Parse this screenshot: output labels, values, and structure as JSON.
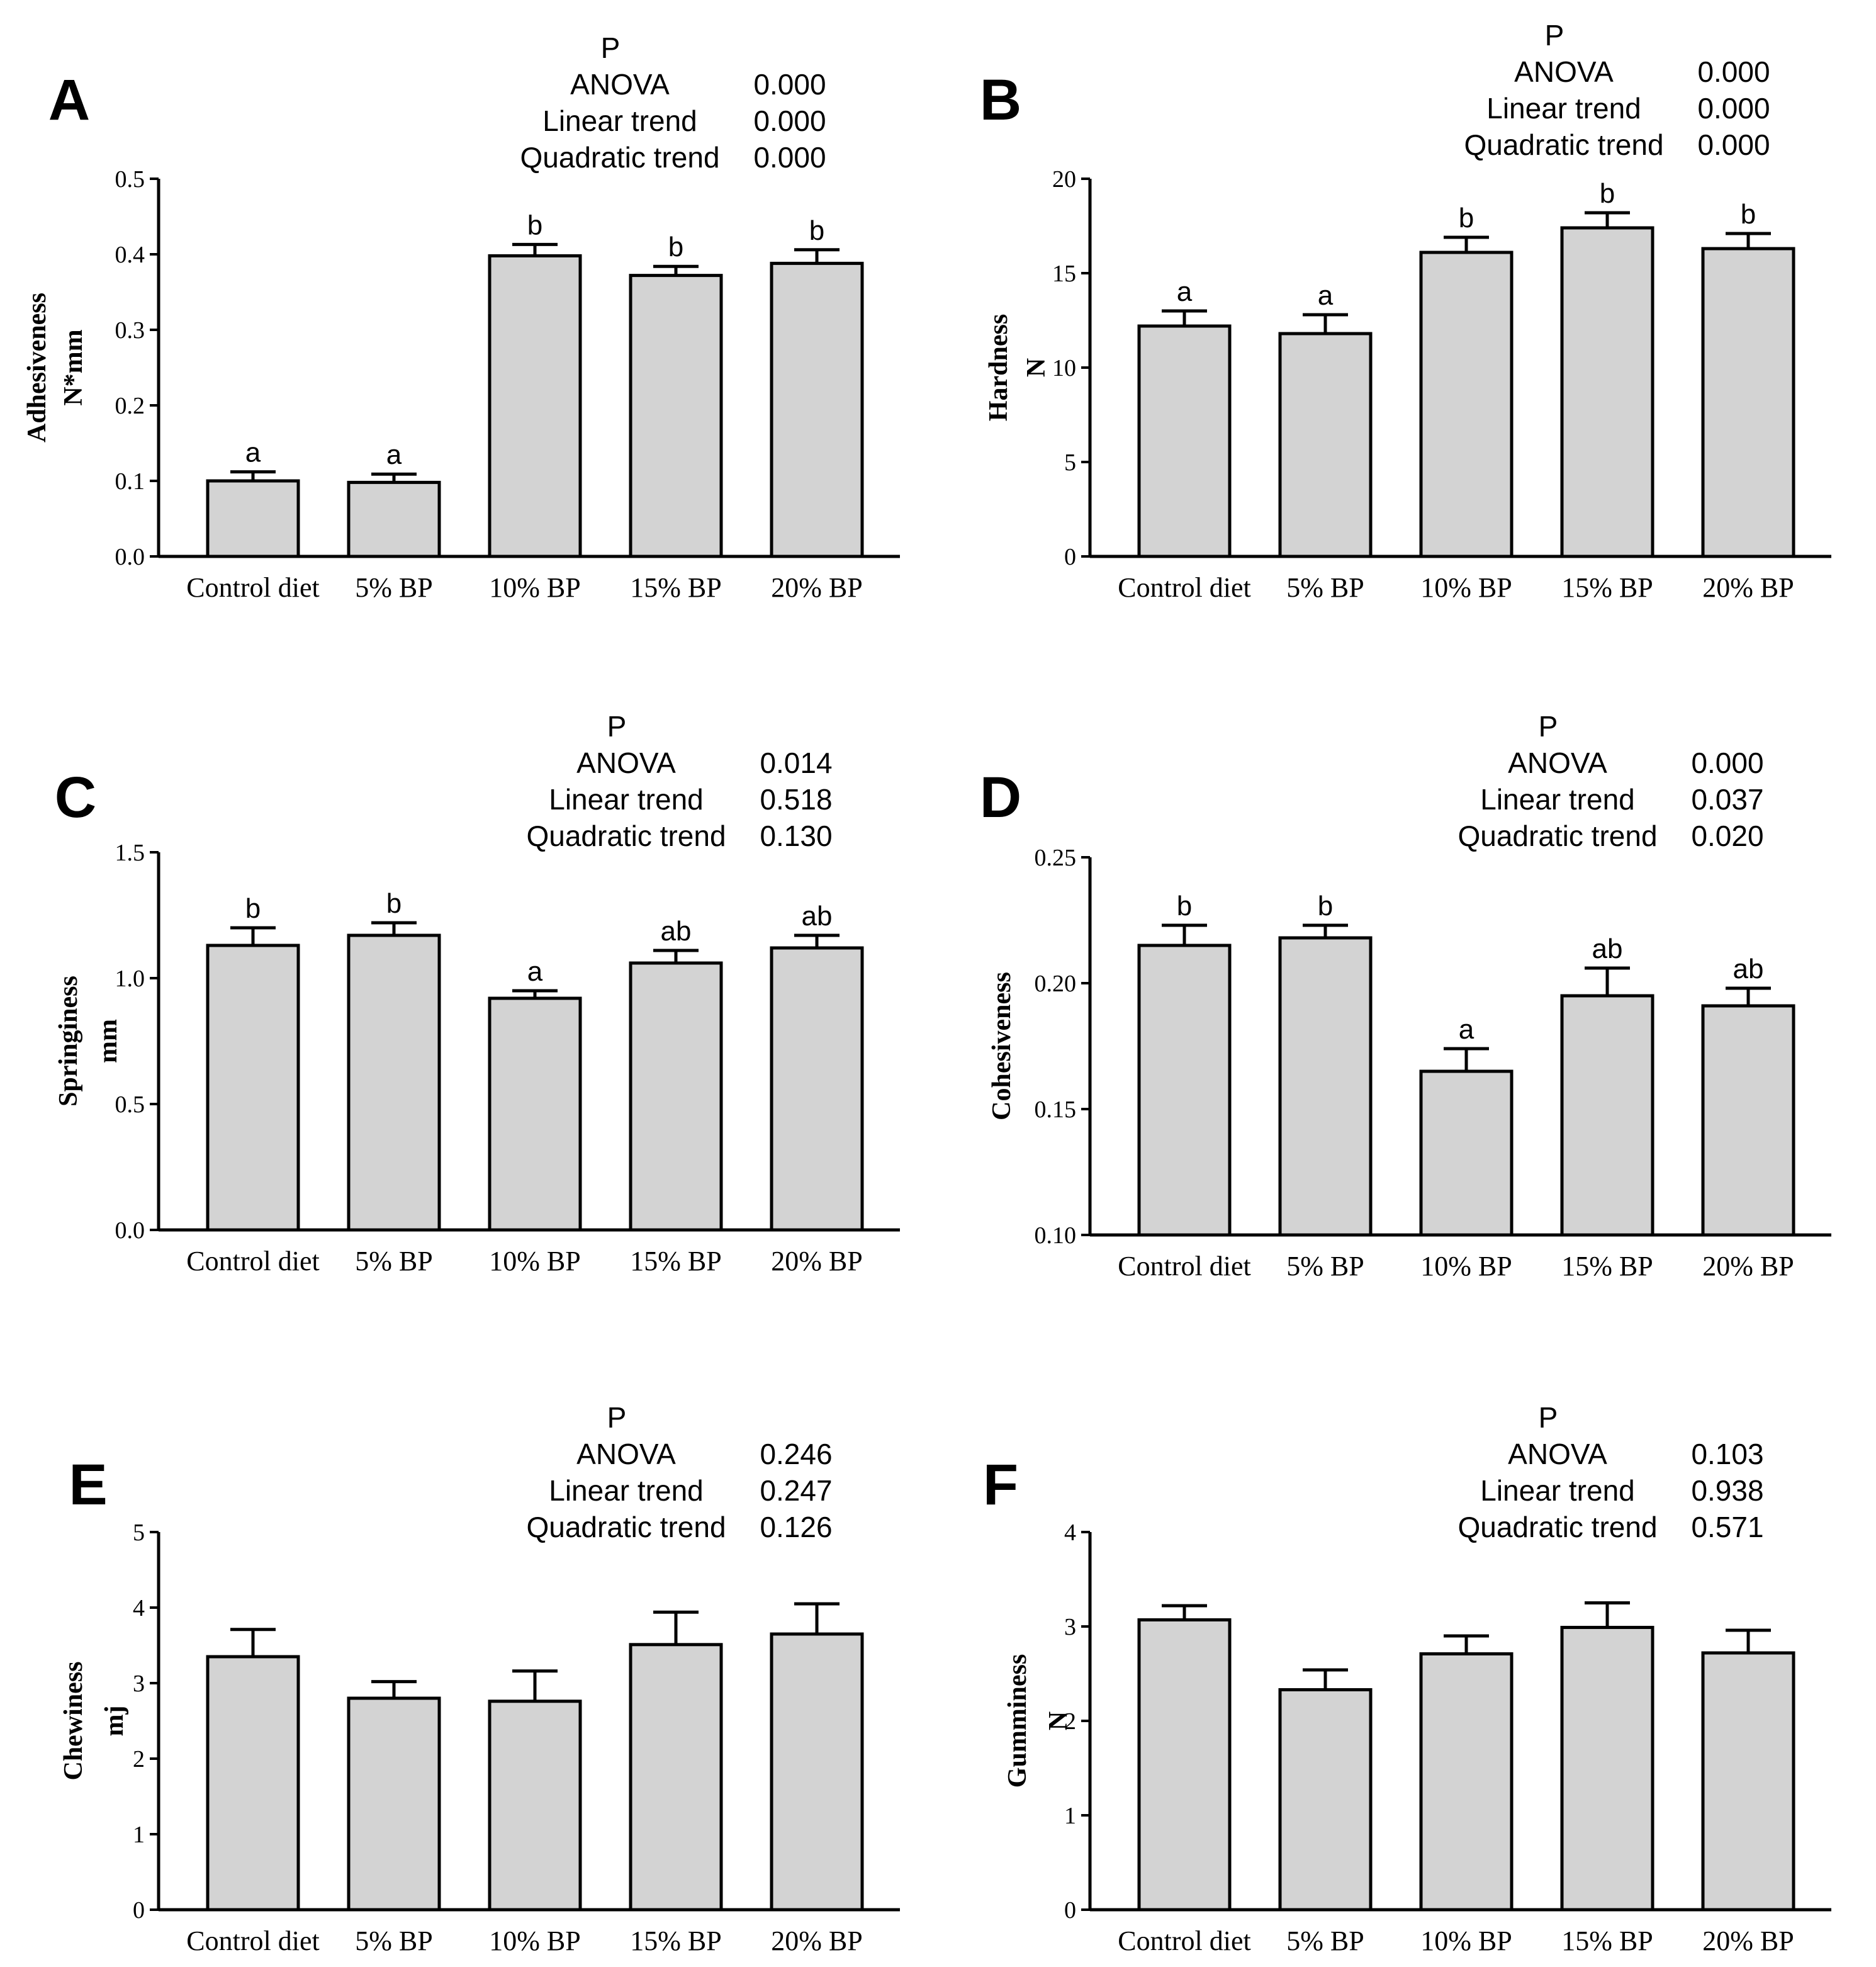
{
  "chart_data": [
    {
      "panel": "A",
      "type": "bar",
      "categories": [
        "Control diet",
        "5% BP",
        "10% BP",
        "15% BP",
        "20% BP"
      ],
      "values": [
        0.1,
        0.098,
        0.398,
        0.372,
        0.388
      ],
      "errors": [
        0.012,
        0.011,
        0.015,
        0.012,
        0.018
      ],
      "sig_labels": [
        "a",
        "a",
        "b",
        "b",
        "b"
      ],
      "ylabel_lines": [
        "Adhesiveness",
        "N*mm"
      ],
      "ylim": [
        0,
        0.5
      ],
      "yticks": [
        "0.0",
        "0.1",
        "0.2",
        "0.3",
        "0.4",
        "0.5"
      ],
      "stats": {
        "header": "P",
        "rows": [
          {
            "label": "ANOVA",
            "value": "0.000"
          },
          {
            "label": "Linear trend",
            "value": "0.000"
          },
          {
            "label": "Quadratic trend",
            "value": "0.000"
          }
        ]
      }
    },
    {
      "panel": "B",
      "type": "bar",
      "categories": [
        "Control diet",
        "5% BP",
        "10% BP",
        "15% BP",
        "20% BP"
      ],
      "values": [
        12.2,
        11.8,
        16.1,
        17.4,
        16.3
      ],
      "errors": [
        0.8,
        1.0,
        0.8,
        0.8,
        0.8
      ],
      "sig_labels": [
        "a",
        "a",
        "b",
        "b",
        "b"
      ],
      "ylabel_lines": [
        "Hardness",
        "N"
      ],
      "ylim": [
        0,
        20
      ],
      "yticks": [
        "0",
        "5",
        "10",
        "15",
        "20"
      ],
      "stats": {
        "header": "P",
        "rows": [
          {
            "label": "ANOVA",
            "value": "0.000"
          },
          {
            "label": "Linear trend",
            "value": "0.000"
          },
          {
            "label": "Quadratic trend",
            "value": "0.000"
          }
        ]
      }
    },
    {
      "panel": "C",
      "type": "bar",
      "categories": [
        "Control diet",
        "5% BP",
        "10% BP",
        "15% BP",
        "20% BP"
      ],
      "values": [
        1.13,
        1.17,
        0.92,
        1.06,
        1.12
      ],
      "errors": [
        0.07,
        0.05,
        0.03,
        0.05,
        0.05
      ],
      "sig_labels": [
        "b",
        "b",
        "a",
        "ab",
        "ab"
      ],
      "ylabel_lines": [
        "Springiness",
        "mm"
      ],
      "ylim": [
        0,
        1.5
      ],
      "yticks": [
        "0.0",
        "0.5",
        "1.0",
        "1.5"
      ],
      "stats": {
        "header": "P",
        "rows": [
          {
            "label": "ANOVA",
            "value": "0.014"
          },
          {
            "label": "Linear trend",
            "value": "0.518"
          },
          {
            "label": "Quadratic trend",
            "value": "0.130"
          }
        ]
      }
    },
    {
      "panel": "D",
      "type": "bar",
      "categories": [
        "Control diet",
        "5% BP",
        "10% BP",
        "15% BP",
        "20% BP"
      ],
      "values": [
        0.215,
        0.218,
        0.165,
        0.195,
        0.191
      ],
      "errors": [
        0.008,
        0.005,
        0.009,
        0.011,
        0.007
      ],
      "sig_labels": [
        "b",
        "b",
        "a",
        "ab",
        "ab"
      ],
      "ylabel_lines": [
        "Cohesiveness"
      ],
      "ylim": [
        0.1,
        0.25
      ],
      "yticks": [
        "0.10",
        "0.15",
        "0.20",
        "0.25"
      ],
      "stats": {
        "header": "P",
        "rows": [
          {
            "label": "ANOVA",
            "value": "0.000"
          },
          {
            "label": "Linear trend",
            "value": "0.037"
          },
          {
            "label": "Quadratic trend",
            "value": "0.020"
          }
        ]
      }
    },
    {
      "panel": "E",
      "type": "bar",
      "categories": [
        "Control diet",
        "5% BP",
        "10% BP",
        "15% BP",
        "20% BP"
      ],
      "values": [
        3.35,
        2.8,
        2.76,
        3.51,
        3.65
      ],
      "errors": [
        0.36,
        0.22,
        0.4,
        0.43,
        0.4
      ],
      "sig_labels": [
        "",
        "",
        "",
        "",
        ""
      ],
      "ylabel_lines": [
        "Chewiness",
        "mj"
      ],
      "ylim": [
        0,
        5
      ],
      "yticks": [
        "0",
        "1",
        "2",
        "3",
        "4",
        "5"
      ],
      "stats": {
        "header": "P",
        "rows": [
          {
            "label": "ANOVA",
            "value": "0.246"
          },
          {
            "label": "Linear trend",
            "value": "0.247"
          },
          {
            "label": "Quadratic trend",
            "value": "0.126"
          }
        ]
      }
    },
    {
      "panel": "F",
      "type": "bar",
      "categories": [
        "Control diet",
        "5% BP",
        "10% BP",
        "15% BP",
        "20% BP"
      ],
      "values": [
        3.07,
        2.33,
        2.71,
        2.99,
        2.72
      ],
      "errors": [
        0.15,
        0.21,
        0.19,
        0.26,
        0.24
      ],
      "sig_labels": [
        "",
        "",
        "",
        "",
        ""
      ],
      "ylabel_lines": [
        "Gumminess",
        "N"
      ],
      "ylim": [
        0,
        4
      ],
      "yticks": [
        "0",
        "1",
        "2",
        "3",
        "4"
      ],
      "stats": {
        "header": "P",
        "rows": [
          {
            "label": "ANOVA",
            "value": "0.103"
          },
          {
            "label": "Linear trend",
            "value": "0.938"
          },
          {
            "label": "Quadratic trend",
            "value": "0.571"
          }
        ]
      }
    }
  ]
}
